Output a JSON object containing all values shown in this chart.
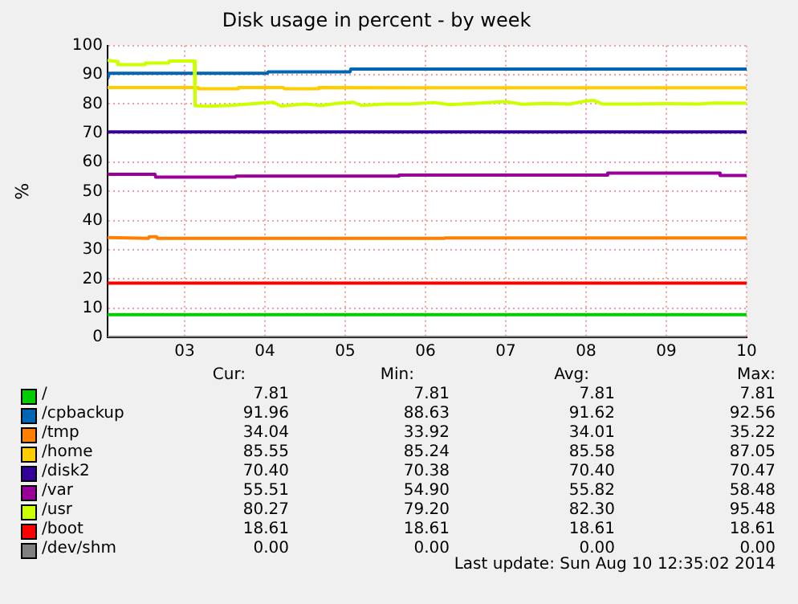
{
  "chart_data": {
    "type": "line",
    "title": "Disk usage in percent - by week",
    "ylabel": "%",
    "xlim": [
      2.04,
      10
    ],
    "xticks": [
      {
        "value": 3,
        "label": "03"
      },
      {
        "value": 4,
        "label": "04"
      },
      {
        "value": 5,
        "label": "05"
      },
      {
        "value": 6,
        "label": "06"
      },
      {
        "value": 7,
        "label": "07"
      },
      {
        "value": 8,
        "label": "08"
      },
      {
        "value": 9,
        "label": "09"
      },
      {
        "value": 10,
        "label": "10"
      }
    ],
    "ylim": [
      0,
      100
    ],
    "yticks": [
      0,
      10,
      20,
      30,
      40,
      50,
      60,
      70,
      80,
      90,
      100
    ],
    "grid": true,
    "legend": "bottom",
    "marker": "none",
    "line_style": "solid",
    "series": [
      {
        "name": "/",
        "color": "#00cc00",
        "x": [
          2.04,
          10
        ],
        "values": [
          7.81,
          7.81
        ]
      },
      {
        "name": "/cpbackup",
        "color": "#0066b3",
        "x": [
          2.04,
          2.06,
          4.03,
          4.04,
          5.06,
          5.07,
          10
        ],
        "values": [
          88.63,
          90.5,
          90.5,
          91,
          91,
          91.96,
          91.96
        ]
      },
      {
        "name": "/tmp",
        "color": "#ff8000",
        "x": [
          2.04,
          2.55,
          2.56,
          2.65,
          2.66,
          6.23,
          6.24,
          10
        ],
        "values": [
          34.2,
          33.92,
          34.5,
          34.5,
          33.92,
          33.92,
          34.04,
          34.04
        ]
      },
      {
        "name": "/home",
        "color": "#ffcc00",
        "x": [
          2.04,
          3.16,
          3.17,
          3.66,
          3.67,
          4.23,
          4.24,
          4.66,
          4.67,
          10
        ],
        "values": [
          85.6,
          85.6,
          85.24,
          85.24,
          85.6,
          85.6,
          85.24,
          85.24,
          85.6,
          85.55
        ]
      },
      {
        "name": "/disk2",
        "color": "#330099",
        "x": [
          2.04,
          10
        ],
        "values": [
          70.4,
          70.4
        ]
      },
      {
        "name": "/var",
        "color": "#990099",
        "x": [
          2.04,
          2.63,
          2.64,
          3.63,
          3.64,
          5.66,
          5.67,
          8.26,
          8.27,
          9.66,
          9.67,
          10
        ],
        "values": [
          55.9,
          55.9,
          54.9,
          54.9,
          55.3,
          55.3,
          55.6,
          55.6,
          56.3,
          56.3,
          55.51,
          55.51
        ]
      },
      {
        "name": "/usr",
        "color": "#ccff00",
        "x": [
          2.04,
          2.16,
          2.17,
          2.5,
          2.51,
          2.8,
          2.81,
          3.12,
          3.13,
          3.3,
          3.6,
          3.8,
          4.1,
          4.2,
          4.5,
          4.7,
          4.9,
          5.1,
          5.2,
          5.5,
          5.8,
          6.1,
          6.3,
          6.6,
          6.9,
          7.0,
          7.2,
          7.5,
          7.8,
          8.0,
          8.1,
          8.2,
          8.6,
          9.0,
          9.4,
          9.6,
          10
        ],
        "values": [
          95,
          94.5,
          93.5,
          93.5,
          94,
          94,
          94.7,
          94.7,
          79.4,
          79.2,
          79.6,
          80,
          80.6,
          79.3,
          80,
          79.5,
          80.2,
          80.6,
          79.5,
          80,
          80,
          80.5,
          79.8,
          80.2,
          80.7,
          80.8,
          79.9,
          80.2,
          80,
          81,
          81.2,
          80,
          80,
          80.1,
          80,
          80.3,
          80.27
        ]
      },
      {
        "name": "/boot",
        "color": "#ff0000",
        "x": [
          2.04,
          10
        ],
        "values": [
          18.61,
          18.61
        ]
      },
      {
        "name": "/dev/shm",
        "color": "#808080",
        "x": [
          2.04,
          10
        ],
        "values": [
          0,
          0
        ]
      }
    ],
    "annotations": [
      "Cur:",
      "Min:",
      "Avg:",
      "Max:",
      "7.81",
      "7.81",
      "7.81",
      "7.81",
      "91.96",
      "88.63",
      "91.62",
      "92.56",
      "34.04",
      "33.92",
      "34.01",
      "35.22",
      "85.55",
      "85.24",
      "85.58",
      "87.05",
      "70.40",
      "70.38",
      "70.40",
      "70.47",
      "55.51",
      "54.90",
      "55.82",
      "58.48",
      "80.27",
      "79.20",
      "82.30",
      "95.48",
      "18.61",
      "18.61",
      "18.61",
      "18.61",
      "0.00",
      "0.00",
      "0.00",
      "0.00",
      "Last update: Sun Aug 10 12:35:02 2014"
    ]
  }
}
